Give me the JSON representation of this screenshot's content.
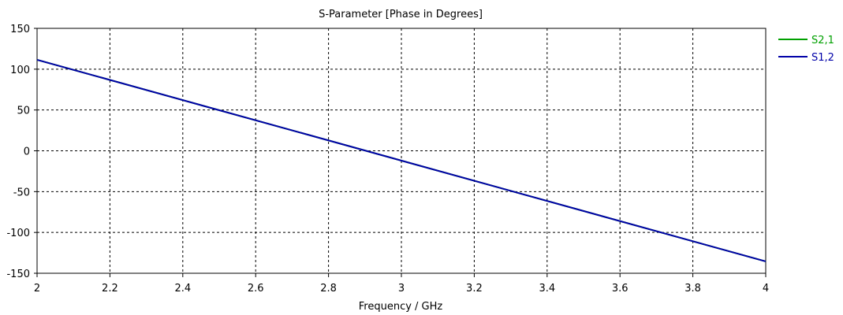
{
  "chart_data": {
    "type": "line",
    "title": "S-Parameter [Phase in Degrees]",
    "xlabel": "Frequency / GHz",
    "ylabel": "",
    "xlim": [
      2,
      4
    ],
    "ylim": [
      -150,
      150
    ],
    "xticks": [
      2,
      2.2,
      2.4,
      2.6,
      2.8,
      3,
      3.2,
      3.4,
      3.6,
      3.8,
      4
    ],
    "xtick_labels": [
      "2",
      "2.2",
      "2.4",
      "2.6",
      "2.8",
      "3",
      "3.2",
      "3.4",
      "3.6",
      "3.8",
      "4"
    ],
    "yticks": [
      150,
      100,
      50,
      0,
      -50,
      -100,
      -150
    ],
    "ytick_labels": [
      "150",
      "100",
      "50",
      "0",
      "-50",
      "-100",
      "-150"
    ],
    "grid": true,
    "legend_position": "right-top",
    "series": [
      {
        "name": "S2,1",
        "color": "#00a000",
        "x": [
          2,
          4
        ],
        "y": [
          111.5,
          -135.5
        ]
      },
      {
        "name": "S1,2",
        "color": "#0000a8",
        "x": [
          2,
          4
        ],
        "y": [
          111.5,
          -135.5
        ]
      }
    ]
  }
}
